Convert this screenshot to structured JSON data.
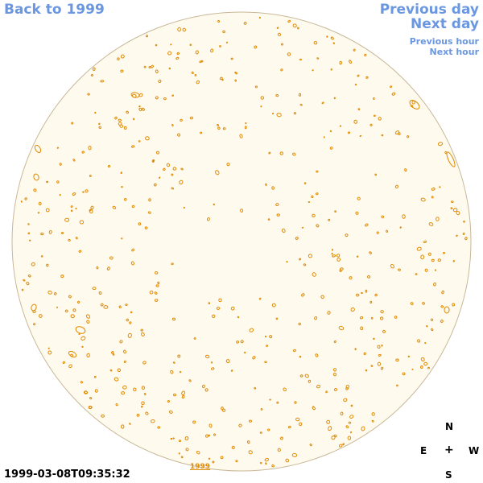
{
  "nav": {
    "back_label": "Back to 1999",
    "previous_day_label": "Previous day",
    "next_day_label": "Next day",
    "previous_hour_label": "Previous hour",
    "next_hour_label": "Next hour"
  },
  "footer": {
    "timestamp": "1999-03-08T09:35:32",
    "year_link": "1999"
  },
  "compass": {
    "north": "N",
    "east": "E",
    "center": "+",
    "west": "W",
    "south": "S"
  },
  "colors": {
    "link": "#6a97e0",
    "disk_fill": "#fffaee",
    "disk_edge": "#c8b898",
    "feature": "#e08a00"
  }
}
